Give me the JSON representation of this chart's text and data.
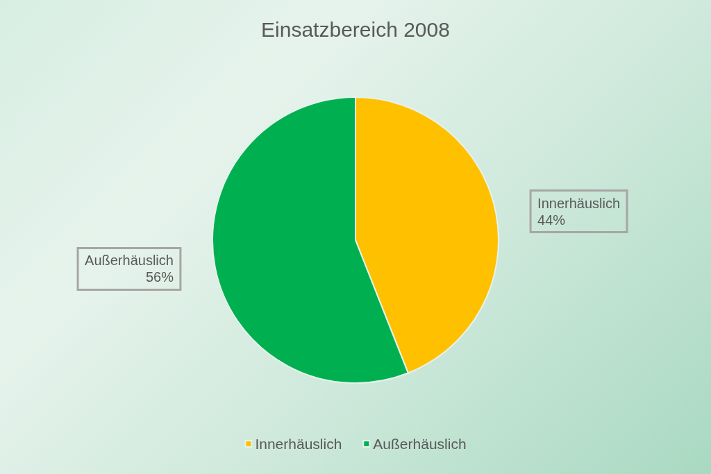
{
  "chart_data": {
    "type": "pie",
    "title": "Einsatzbereich 2008",
    "categories": [
      "Innerhäuslich",
      "Außerhäuslich"
    ],
    "values": [
      44,
      56
    ],
    "colors": [
      "#ffc000",
      "#00b050"
    ],
    "value_labels": [
      "44%",
      "56%"
    ],
    "legend": "bottom"
  }
}
